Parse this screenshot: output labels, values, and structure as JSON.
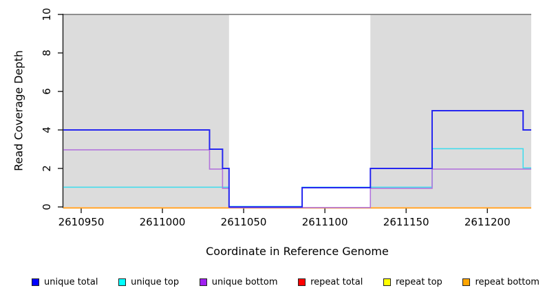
{
  "chart_data": {
    "type": "step-line-coverage",
    "title": "",
    "xlabel": "Coordinate in Reference Genome",
    "ylabel": "Read Coverage Depth",
    "xlim": [
      2610939,
      2611227
    ],
    "ylim": [
      0,
      10
    ],
    "x_ticks": [
      "2610950",
      "2611000",
      "2611050",
      "2611100",
      "2611150",
      "2611200"
    ],
    "x_tick_values": [
      2610950,
      2611000,
      2611050,
      2611100,
      2611150,
      2611200
    ],
    "y_ticks": [
      "0",
      "2",
      "4",
      "6",
      "8",
      "10"
    ],
    "y_tick_values": [
      0,
      2,
      4,
      6,
      8,
      10
    ],
    "grid": false,
    "shaded_regions": [
      {
        "name": "unique-mappability-region-left",
        "from": 2610939,
        "to": 2611041,
        "color": "#dcdcdc"
      },
      {
        "name": "unique-mappability-region-right",
        "from": 2611128,
        "to": 2611227,
        "color": "#dcdcdc"
      }
    ],
    "top_rule": {
      "value": 10,
      "color": "#6e6e6e"
    },
    "series": [
      {
        "name": "repeat total",
        "legend_color": "#ff0000",
        "line_color": "#ee2222",
        "steps": [
          [
            2610939,
            0
          ]
        ]
      },
      {
        "name": "repeat top",
        "legend_color": "#ffff00",
        "line_color": "#ffee00",
        "steps": [
          [
            2610939,
            0
          ]
        ]
      },
      {
        "name": "repeat bottom",
        "legend_color": "#ffa500",
        "line_color": "#ff9d20",
        "steps": [
          [
            2610939,
            0
          ]
        ]
      },
      {
        "name": "unique top",
        "legend_color": "#00ffff",
        "line_color": "#45dcec",
        "steps": [
          [
            2610939,
            1
          ],
          [
            2611041,
            0
          ],
          [
            2611086,
            1
          ],
          [
            2611166,
            3
          ],
          [
            2611222,
            2
          ]
        ]
      },
      {
        "name": "unique bottom",
        "legend_color": "#a020f0",
        "line_color": "#b274dc",
        "steps": [
          [
            2610939,
            3
          ],
          [
            2611029,
            2
          ],
          [
            2611037,
            1
          ],
          [
            2611041,
            0
          ],
          [
            2611128,
            1
          ],
          [
            2611166,
            2
          ]
        ]
      },
      {
        "name": "unique total",
        "legend_color": "#0000ff",
        "line_color": "#2525f0",
        "steps": [
          [
            2610939,
            4
          ],
          [
            2611029,
            3
          ],
          [
            2611037,
            2
          ],
          [
            2611041,
            0
          ],
          [
            2611086,
            1
          ],
          [
            2611128,
            2
          ],
          [
            2611166,
            5
          ],
          [
            2611222,
            4
          ]
        ]
      }
    ],
    "legend": [
      {
        "label": "unique total",
        "color": "#0000ff"
      },
      {
        "label": "unique top",
        "color": "#00ffff"
      },
      {
        "label": "unique bottom",
        "color": "#a020f0"
      },
      {
        "label": "repeat total",
        "color": "#ff0000"
      },
      {
        "label": "repeat top",
        "color": "#ffff00"
      },
      {
        "label": "repeat bottom",
        "color": "#ffa500"
      }
    ],
    "legend_position": "bottom"
  }
}
